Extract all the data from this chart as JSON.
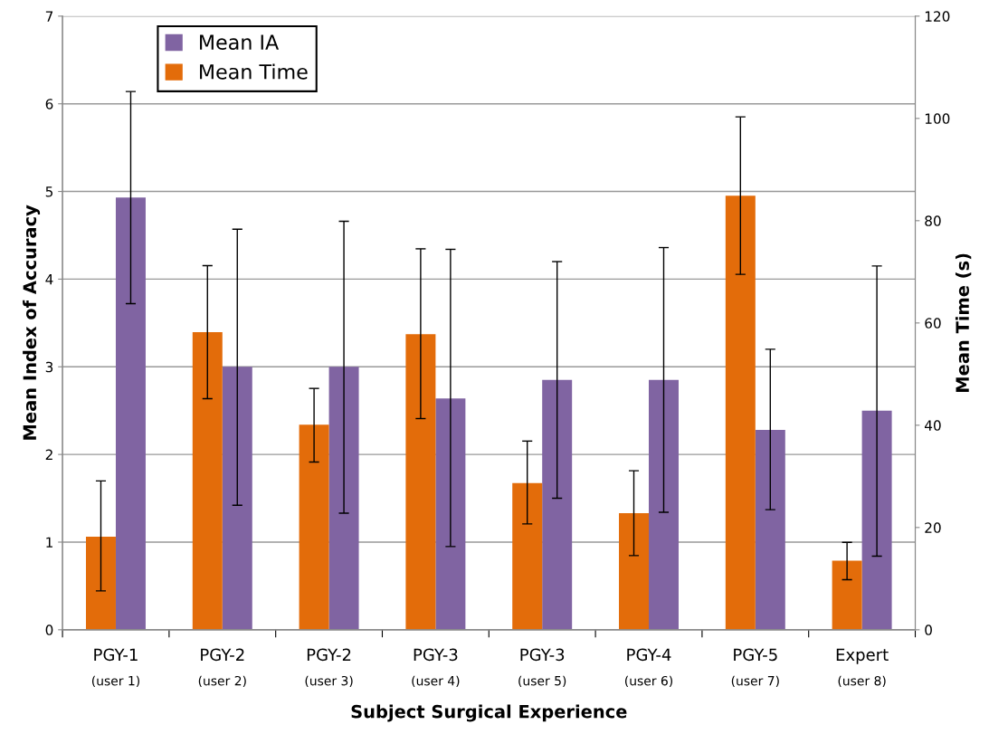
{
  "chart_data": {
    "type": "bar",
    "xlabel": "Subject Surgical Experience",
    "ylabel": "Mean Index of Accuracy",
    "y2label": "Mean Time (s)",
    "categories": [
      "PGY-1\n(user 1)",
      "PGY-2\n(user 2)",
      "PGY-2\n(user 3)",
      "PGY-3\n(user 4)",
      "PGY-3\n(user 5)",
      "PGY-4\n(user 6)",
      "PGY-5\n(user 7)",
      "Expert\n(user 8)"
    ],
    "series": [
      {
        "name": "Mean Time",
        "color": "#e36c0a",
        "axis": "y2",
        "values": [
          18.2,
          58.2,
          40.1,
          57.8,
          28.7,
          22.8,
          84.9,
          13.5
        ],
        "errors": [
          [
            7.6,
            29.1
          ],
          [
            45.2,
            71.2
          ],
          [
            32.8,
            47.2
          ],
          [
            41.3,
            74.5
          ],
          [
            20.7,
            36.9
          ],
          [
            14.5,
            31.1
          ],
          [
            69.5,
            100.3
          ],
          [
            9.8,
            17.1
          ]
        ]
      },
      {
        "name": "Mean IA",
        "color": "#8064a2",
        "values": [
          4.93,
          3.0,
          3.0,
          2.64,
          2.85,
          2.85,
          2.28,
          2.5
        ],
        "errors": [
          [
            3.72,
            6.14
          ],
          [
            1.42,
            4.57
          ],
          [
            1.33,
            4.66
          ],
          [
            0.95,
            4.34
          ],
          [
            1.5,
            4.2
          ],
          [
            1.34,
            4.36
          ],
          [
            1.37,
            3.2
          ],
          [
            0.84,
            4.15
          ]
        ]
      }
    ],
    "ylim": [
      0,
      7
    ],
    "yticks": [
      0,
      1,
      2,
      3,
      4,
      5,
      6,
      7
    ],
    "y2lim": [
      0,
      120
    ],
    "y2ticks": [
      0,
      20,
      40,
      60,
      80,
      100,
      120
    ],
    "grid": "y",
    "legend": "top left"
  }
}
